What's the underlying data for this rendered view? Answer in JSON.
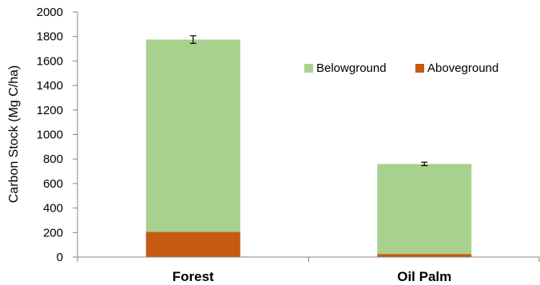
{
  "chart_data": {
    "type": "bar",
    "stacked": true,
    "categories": [
      "Forest",
      "Oil Palm"
    ],
    "series": [
      {
        "name": "Aboveground",
        "values": [
          205,
          25
        ],
        "color": "#c55a11"
      },
      {
        "name": "Belowground",
        "values": [
          1570,
          735
        ],
        "color": "#a9d18e"
      }
    ],
    "error_bars": {
      "values": [
        62,
        28
      ],
      "color": "#000000"
    },
    "title": "",
    "xlabel": "",
    "ylabel": "Carbon Stock (Mg C/ha)",
    "ylim": [
      0,
      2000
    ],
    "yticks": [
      0,
      200,
      400,
      600,
      800,
      1000,
      1200,
      1400,
      1600,
      1800,
      2000
    ],
    "grid": false,
    "legend": {
      "placement": "top-right",
      "order": [
        "Belowground",
        "Aboveground"
      ]
    }
  }
}
